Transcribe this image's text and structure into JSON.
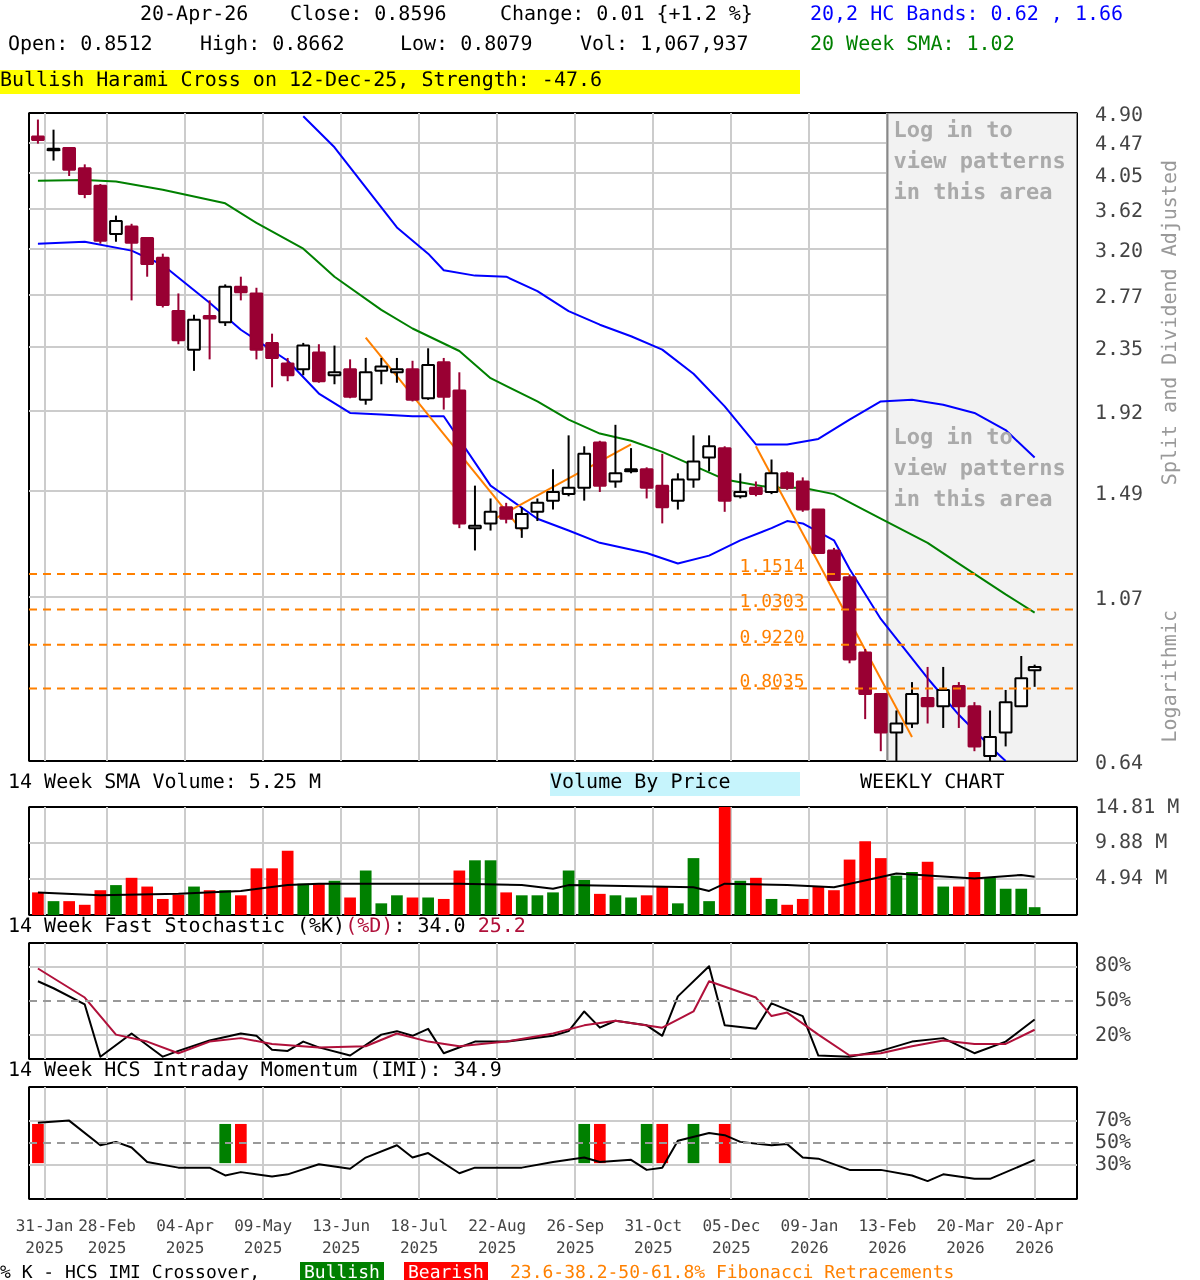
{
  "chart_data": [
    {
      "type": "candlestick",
      "x": [
        "2025-01-28",
        "2025-02-04",
        "2025-02-11",
        "2025-02-18",
        "2025-02-25",
        "2025-03-04",
        "2025-03-11",
        "2025-03-18",
        "2025-03-25",
        "2025-04-01",
        "2025-04-08",
        "2025-04-15",
        "2025-04-22",
        "2025-04-29",
        "2025-05-06",
        "2025-05-13",
        "2025-05-20",
        "2025-05-27",
        "2025-06-03",
        "2025-06-10",
        "2025-06-17",
        "2025-06-24",
        "2025-07-01",
        "2025-07-08",
        "2025-07-15",
        "2025-07-22",
        "2025-07-29",
        "2025-08-05",
        "2025-08-12",
        "2025-08-19",
        "2025-08-26",
        "2025-09-02",
        "2025-09-09",
        "2025-09-16",
        "2025-09-23",
        "2025-09-30",
        "2025-10-07",
        "2025-10-14",
        "2025-10-21",
        "2025-10-28",
        "2025-11-04",
        "2025-11-11",
        "2025-11-18",
        "2025-11-25",
        "2025-12-02",
        "2025-12-09",
        "2025-12-16",
        "2025-12-23",
        "2025-12-30",
        "2026-01-06",
        "2026-01-13",
        "2026-01-20",
        "2026-01-27",
        "2026-02-03",
        "2026-02-10",
        "2026-02-17",
        "2026-02-24",
        "2026-03-03",
        "2026-03-10",
        "2026-03-17",
        "2026-03-24",
        "2026-03-31",
        "2026-04-07",
        "2026-04-14",
        "2026-04-20"
      ],
      "ohlc": [
        [
          4.55,
          4.8,
          4.45,
          4.5
        ],
        [
          4.36,
          4.65,
          4.22,
          4.38
        ],
        [
          4.39,
          4.4,
          4.02,
          4.1
        ],
        [
          4.12,
          4.17,
          3.75,
          3.8
        ],
        [
          3.9,
          3.92,
          3.25,
          3.28
        ],
        [
          3.35,
          3.55,
          3.27,
          3.49
        ],
        [
          3.43,
          3.46,
          2.72,
          3.26
        ],
        [
          3.31,
          3.31,
          2.93,
          3.05
        ],
        [
          3.11,
          3.15,
          2.66,
          2.68
        ],
        [
          2.63,
          2.78,
          2.37,
          2.4
        ],
        [
          2.33,
          2.6,
          2.18,
          2.56
        ],
        [
          2.59,
          2.72,
          2.26,
          2.57
        ],
        [
          2.54,
          2.86,
          2.51,
          2.84
        ],
        [
          2.84,
          2.93,
          2.72,
          2.79
        ],
        [
          2.78,
          2.83,
          2.26,
          2.33
        ],
        [
          2.38,
          2.45,
          2.07,
          2.27
        ],
        [
          2.23,
          2.27,
          2.11,
          2.15
        ],
        [
          2.19,
          2.38,
          2.15,
          2.36
        ],
        [
          2.31,
          2.37,
          2.1,
          2.11
        ],
        [
          2.15,
          2.36,
          2.09,
          2.17
        ],
        [
          2.19,
          2.26,
          2.0,
          2.01
        ],
        [
          1.99,
          2.27,
          1.96,
          2.17
        ],
        [
          2.18,
          2.27,
          2.09,
          2.21
        ],
        [
          2.17,
          2.27,
          2.1,
          2.19
        ],
        [
          2.19,
          2.25,
          1.98,
          1.99
        ],
        [
          2.0,
          2.34,
          1.99,
          2.22
        ],
        [
          2.24,
          2.27,
          1.93,
          2.01
        ],
        [
          2.05,
          2.17,
          1.33,
          1.35
        ],
        [
          1.33,
          1.52,
          1.24,
          1.34
        ],
        [
          1.35,
          1.46,
          1.32,
          1.4
        ],
        [
          1.42,
          1.44,
          1.35,
          1.37
        ],
        [
          1.33,
          1.42,
          1.29,
          1.39
        ],
        [
          1.4,
          1.46,
          1.36,
          1.44
        ],
        [
          1.45,
          1.6,
          1.41,
          1.49
        ],
        [
          1.48,
          1.78,
          1.47,
          1.51
        ],
        [
          1.51,
          1.72,
          1.45,
          1.68
        ],
        [
          1.74,
          1.75,
          1.49,
          1.52
        ],
        [
          1.54,
          1.84,
          1.51,
          1.58
        ],
        [
          1.59,
          1.71,
          1.58,
          1.6
        ],
        [
          1.6,
          1.61,
          1.46,
          1.51
        ],
        [
          1.52,
          1.68,
          1.35,
          1.42
        ],
        [
          1.45,
          1.58,
          1.41,
          1.55
        ],
        [
          1.55,
          1.78,
          1.51,
          1.64
        ],
        [
          1.66,
          1.78,
          1.59,
          1.72
        ],
        [
          1.71,
          1.72,
          1.4,
          1.45
        ],
        [
          1.47,
          1.58,
          1.46,
          1.49
        ],
        [
          1.51,
          1.54,
          1.47,
          1.48
        ],
        [
          1.49,
          1.65,
          1.48,
          1.58
        ],
        [
          1.58,
          1.59,
          1.5,
          1.51
        ],
        [
          1.54,
          1.56,
          1.4,
          1.41
        ],
        [
          1.41,
          1.41,
          1.23,
          1.23
        ],
        [
          1.24,
          1.25,
          1.13,
          1.13
        ],
        [
          1.14,
          1.15,
          0.87,
          0.88
        ],
        [
          0.9,
          0.91,
          0.73,
          0.79
        ],
        [
          0.79,
          0.79,
          0.66,
          0.7
        ],
        [
          0.7,
          0.75,
          0.64,
          0.72
        ],
        [
          0.72,
          0.82,
          0.71,
          0.79
        ],
        [
          0.78,
          0.86,
          0.72,
          0.76
        ],
        [
          0.76,
          0.86,
          0.71,
          0.8
        ],
        [
          0.81,
          0.82,
          0.71,
          0.76
        ],
        [
          0.76,
          0.77,
          0.66,
          0.67
        ],
        [
          0.65,
          0.75,
          0.64,
          0.69
        ],
        [
          0.7,
          0.8,
          0.67,
          0.77
        ],
        [
          0.76,
          0.89,
          0.76,
          0.83
        ],
        [
          0.8512,
          0.8662,
          0.8079,
          0.8596
        ]
      ],
      "colors": [
        "#990033",
        "#ffffff",
        "#990033",
        "#990033",
        "#990033",
        "#ffffff",
        "#990033",
        "#990033",
        "#990033",
        "#990033",
        "#ffffff",
        "#990033",
        "#ffffff",
        "#990033",
        "#990033",
        "#990033",
        "#990033",
        "#ffffff",
        "#990033",
        "#ffffff",
        "#990033",
        "#ffffff",
        "#ffffff",
        "#ffffff",
        "#990033",
        "#ffffff",
        "#990033",
        "#990033",
        "#ffffff",
        "#ffffff",
        "#990033",
        "#ffffff",
        "#ffffff",
        "#ffffff",
        "#ffffff",
        "#ffffff",
        "#990033",
        "#ffffff",
        "#ffffff",
        "#990033",
        "#990033",
        "#ffffff",
        "#ffffff",
        "#ffffff",
        "#990033",
        "#ffffff",
        "#990033",
        "#ffffff",
        "#990033",
        "#990033",
        "#990033",
        "#990033",
        "#990033",
        "#990033",
        "#990033",
        "#ffffff",
        "#ffffff",
        "#990033",
        "#ffffff",
        "#990033",
        "#990033",
        "#ffffff",
        "#ffffff",
        "#ffffff",
        "#ffffff"
      ],
      "series": [
        {
          "type": "line",
          "name": "20,2 HC Bands: 0.62 , 1.66",
          "color": "#0000ff",
          "x": [
            "2025-05-27",
            "2025-06-10",
            "2025-06-24",
            "2025-07-08",
            "2025-07-22",
            "2025-07-29",
            "2025-08-12",
            "2025-08-26",
            "2025-09-09",
            "2025-09-23",
            "2025-10-07",
            "2025-10-21",
            "2025-11-04",
            "2025-11-18",
            "2025-12-02",
            "2025-12-16",
            "2025-12-30",
            "2026-01-13",
            "2026-01-27",
            "2026-02-10",
            "2026-02-24",
            "2026-03-10",
            "2026-03-24",
            "2026-04-07",
            "2026-04-20"
          ],
          "values": [
            4.85,
            4.4,
            3.88,
            3.42,
            3.15,
            2.99,
            2.94,
            2.93,
            2.8,
            2.63,
            2.52,
            2.43,
            2.33,
            2.16,
            1.95,
            1.73,
            1.73,
            1.76,
            1.87,
            1.98,
            1.99,
            1.96,
            1.91,
            1.81,
            1.66
          ]
        },
        {
          "type": "line",
          "color": "#0000ff",
          "x": [
            "2025-01-28",
            "2025-02-18",
            "2025-03-11",
            "2025-03-25",
            "2025-04-15",
            "2025-04-29",
            "2025-05-20",
            "2025-06-03",
            "2025-06-17",
            "2025-07-01",
            "2025-07-15",
            "2025-07-29",
            "2025-08-19",
            "2025-09-09",
            "2025-09-23",
            "2025-10-07",
            "2025-10-28",
            "2025-11-11",
            "2025-11-25",
            "2025-12-09",
            "2025-12-23",
            "2025-12-30",
            "2026-01-06",
            "2026-01-20",
            "2026-01-27",
            "2026-02-10",
            "2026-03-03",
            "2026-03-17",
            "2026-03-31",
            "2026-04-07"
          ],
          "values": [
            3.25,
            3.27,
            3.18,
            3.04,
            2.7,
            2.48,
            2.25,
            2.03,
            1.91,
            1.9,
            1.89,
            1.89,
            1.52,
            1.37,
            1.32,
            1.27,
            1.23,
            1.19,
            1.22,
            1.28,
            1.33,
            1.36,
            1.35,
            1.28,
            1.17,
            1.0,
            0.83,
            0.74,
            0.67,
            0.64
          ]
        },
        {
          "type": "line",
          "name": "20 Week SMA: 1.02",
          "color": "#008000",
          "x": [
            "2025-01-28",
            "2025-02-18",
            "2025-03-04",
            "2025-03-25",
            "2025-04-22",
            "2025-05-06",
            "2025-05-27",
            "2025-06-10",
            "2025-07-01",
            "2025-07-15",
            "2025-08-05",
            "2025-08-19",
            "2025-09-09",
            "2025-09-23",
            "2025-10-07",
            "2025-10-21",
            "2025-11-04",
            "2025-12-02",
            "2025-12-23",
            "2026-01-06",
            "2026-01-20",
            "2026-02-10",
            "2026-03-03",
            "2026-03-17",
            "2026-04-07",
            "2026-04-20"
          ],
          "values": [
            3.96,
            3.97,
            3.95,
            3.85,
            3.69,
            3.47,
            3.2,
            2.93,
            2.64,
            2.49,
            2.32,
            2.13,
            1.98,
            1.87,
            1.79,
            1.75,
            1.69,
            1.55,
            1.51,
            1.51,
            1.48,
            1.37,
            1.27,
            1.19,
            1.08,
            1.02
          ]
        },
        {
          "type": "line",
          "color": "#ff8000",
          "x": [
            "2025-06-24",
            "2025-09-02"
          ],
          "values": [
            2.42,
            1.32
          ]
        },
        {
          "type": "line",
          "color": "#ff8000",
          "x": [
            "2025-08-19",
            "2025-10-21"
          ],
          "values": [
            1.36,
            1.73
          ]
        },
        {
          "type": "line",
          "color": "#ff8000",
          "x": [
            "2025-12-16",
            "2026-02-24"
          ],
          "values": [
            1.72,
            0.69
          ]
        }
      ],
      "xlim": [
        "2025-01-24",
        "2026-05-09"
      ],
      "ylim": [
        0.64,
        4.9
      ],
      "yticks": [
        0.64,
        1.07,
        1.49,
        1.92,
        2.35,
        2.77,
        {
          "value": 3.2,
          "label": "3.20"
        },
        3.62,
        4.05,
        4.47,
        {
          "value": 4.9,
          "label": "4.90"
        }
      ],
      "log": true,
      "grid": true,
      "legend": "top right",
      "tick_labels": "y",
      "ref_lines": [
        {
          "axis": "y",
          "value": 1.1514,
          "label": "1.1514",
          "color": "#ff8000",
          "line_style": "dashed"
        },
        {
          "axis": "y",
          "value": 1.0303,
          "label": "1.0303",
          "color": "#ff8000",
          "line_style": "dashed"
        },
        {
          "axis": "y",
          "value": 0.922,
          "label": "0.9220",
          "color": "#ff8000",
          "line_style": "dashed"
        },
        {
          "axis": "y",
          "value": 0.8035,
          "label": "0.8035",
          "color": "#ff8000",
          "line_style": "dashed"
        }
      ],
      "bands": [
        {
          "axis": "x",
          "from": "2026-02-13",
          "to": "2026-05-09",
          "label": "Log in to view patterns in this area",
          "color": "#f2f2f2"
        }
      ],
      "annotations": [
        "20-Apr-26",
        "Close: 0.8596",
        "Change: 0.01 {+1.2 %}",
        "Open: 0.8512",
        "High: 0.8662",
        "Low: 0.8079",
        "Vol: 1,067,937",
        "Bullish Harami Cross on 12-Dec-25, Strength: -47.6",
        "Split and Dividend Adjusted",
        "Logarithmic",
        "Log in to view patterns in this area",
        "23.6-38.2-50-61.8% Fibonacci Retracements"
      ]
    },
    {
      "type": "bar",
      "title": "14 Week SMA Volume: 5.25 M",
      "x": [
        "2025-01-28",
        "2025-02-04",
        "2025-02-11",
        "2025-02-18",
        "2025-02-25",
        "2025-03-04",
        "2025-03-11",
        "2025-03-18",
        "2025-03-25",
        "2025-04-01",
        "2025-04-08",
        "2025-04-15",
        "2025-04-22",
        "2025-04-29",
        "2025-05-06",
        "2025-05-13",
        "2025-05-20",
        "2025-05-27",
        "2025-06-03",
        "2025-06-10",
        "2025-06-17",
        "2025-06-24",
        "2025-07-01",
        "2025-07-08",
        "2025-07-15",
        "2025-07-22",
        "2025-07-29",
        "2025-08-05",
        "2025-08-12",
        "2025-08-19",
        "2025-08-26",
        "2025-09-02",
        "2025-09-09",
        "2025-09-16",
        "2025-09-23",
        "2025-09-30",
        "2025-10-07",
        "2025-10-14",
        "2025-10-21",
        "2025-10-28",
        "2025-11-04",
        "2025-11-11",
        "2025-11-18",
        "2025-11-25",
        "2025-12-02",
        "2025-12-09",
        "2025-12-16",
        "2025-12-23",
        "2025-12-30",
        "2026-01-06",
        "2026-01-13",
        "2026-01-20",
        "2026-01-27",
        "2026-02-03",
        "2026-02-10",
        "2026-02-17",
        "2026-02-24",
        "2026-03-03",
        "2026-03-10",
        "2026-03-17",
        "2026-03-24",
        "2026-03-31",
        "2026-04-07",
        "2026-04-14",
        "2026-04-20"
      ],
      "series": [
        {
          "type": "bar",
          "colors": [
            "#ff0000",
            "#008000",
            "#ff0000",
            "#ff0000",
            "#ff0000",
            "#008000",
            "#ff0000",
            "#ff0000",
            "#ff0000",
            "#ff0000",
            "#008000",
            "#ff0000",
            "#008000",
            "#ff0000",
            "#ff0000",
            "#ff0000",
            "#ff0000",
            "#008000",
            "#ff0000",
            "#008000",
            "#ff0000",
            "#008000",
            "#008000",
            "#008000",
            "#ff0000",
            "#008000",
            "#ff0000",
            "#ff0000",
            "#008000",
            "#008000",
            "#ff0000",
            "#008000",
            "#008000",
            "#008000",
            "#008000",
            "#008000",
            "#ff0000",
            "#008000",
            "#008000",
            "#ff0000",
            "#ff0000",
            "#008000",
            "#008000",
            "#008000",
            "#ff0000",
            "#008000",
            "#ff0000",
            "#008000",
            "#ff0000",
            "#ff0000",
            "#ff0000",
            "#ff0000",
            "#ff0000",
            "#ff0000",
            "#ff0000",
            "#008000",
            "#008000",
            "#ff0000",
            "#008000",
            "#ff0000",
            "#ff0000",
            "#008000",
            "#008000",
            "#008000",
            "#008000"
          ],
          "values": [
            3.1,
            1.9,
            1.9,
            1.4,
            3.4,
            4.1,
            5.1,
            3.9,
            2.2,
            2.8,
            3.9,
            3.4,
            3.4,
            2.7,
            6.4,
            6.4,
            8.8,
            4.3,
            4.3,
            4.7,
            2.4,
            6.1,
            1.6,
            2.7,
            2.4,
            2.4,
            2.2,
            6.1,
            7.5,
            7.5,
            3.1,
            2.7,
            2.7,
            3.1,
            6.1,
            4.8,
            2.9,
            2.7,
            2.4,
            2.7,
            3.9,
            1.6,
            7.8,
            1.9,
            14.81,
            4.7,
            5.1,
            2.2,
            1.4,
            2.2,
            3.9,
            3.4,
            7.6,
            10.1,
            7.8,
            5.4,
            5.9,
            7.3,
            3.9,
            3.9,
            5.9,
            5.1,
            3.6,
            3.6,
            1.07
          ]
        },
        {
          "type": "line",
          "color": "#000000",
          "x": [
            "2025-01-28",
            "2025-02-25",
            "2025-04-01",
            "2025-04-29",
            "2025-05-20",
            "2025-06-03",
            "2025-08-05",
            "2025-09-02",
            "2025-09-16",
            "2025-09-23",
            "2025-11-18",
            "2025-11-25",
            "2025-12-02",
            "2025-12-30",
            "2026-01-20",
            "2026-02-10",
            "2026-02-17",
            "2026-03-24",
            "2026-04-14",
            "2026-04-20"
          ],
          "values": [
            3.1,
            2.7,
            2.9,
            3.3,
            4.1,
            4.3,
            4.3,
            4.1,
            3.6,
            4.1,
            3.8,
            3.3,
            4.3,
            4.1,
            3.8,
            5.2,
            5.7,
            5.0,
            5.5,
            5.25
          ]
        }
      ],
      "xlim": [
        "2025-01-24",
        "2026-05-09"
      ],
      "ylim": [
        0,
        14.81
      ],
      "yticks": [
        {
          "value": 4.94,
          "label": "4.94 M"
        },
        {
          "value": 9.88,
          "label": "9.88 M"
        },
        {
          "value": 14.81,
          "label": "14.81 M"
        }
      ],
      "grid": true,
      "tick_labels": "y",
      "annotations": [
        "Volume By Price",
        "WEEKLY CHART"
      ]
    },
    {
      "type": "line",
      "title": "14 Week Fast Stochastic",
      "legend": "top left",
      "series": [
        {
          "type": "line",
          "name": "(%K)",
          "color": "#000000",
          "x": [
            "2025-01-28",
            "2025-02-04",
            "2025-02-18",
            "2025-02-25",
            "2025-03-11",
            "2025-03-25",
            "2025-04-01",
            "2025-04-15",
            "2025-04-29",
            "2025-05-06",
            "2025-05-13",
            "2025-05-20",
            "2025-05-27",
            "2025-06-03",
            "2025-06-17",
            "2025-07-01",
            "2025-07-08",
            "2025-07-15",
            "2025-07-22",
            "2025-07-29",
            "2025-08-12",
            "2025-08-26",
            "2025-09-16",
            "2025-09-23",
            "2025-09-30",
            "2025-10-07",
            "2025-10-14",
            "2025-10-28",
            "2025-11-04",
            "2025-11-11",
            "2025-11-25",
            "2025-12-02",
            "2025-12-16",
            "2025-12-23",
            "2026-01-06",
            "2026-01-13",
            "2026-01-27",
            "2026-02-10",
            "2026-02-24",
            "2026-03-10",
            "2026-03-24",
            "2026-04-07",
            "2026-04-20"
          ],
          "values": [
            67,
            61,
            47,
            2,
            22,
            2,
            7,
            16,
            22,
            20,
            8,
            7,
            15,
            10,
            3,
            21,
            24,
            20,
            26,
            5,
            15,
            15,
            20,
            24,
            41,
            27,
            33,
            29,
            20,
            54,
            80,
            29,
            26,
            48,
            37,
            3,
            2,
            7,
            15,
            18,
            5,
            15,
            34
          ]
        },
        {
          "type": "line",
          "name": "(%D)",
          "color": "#b0103a",
          "x": [
            "2025-01-28",
            "2025-02-18",
            "2025-03-04",
            "2025-03-18",
            "2025-04-01",
            "2025-04-15",
            "2025-04-29",
            "2025-05-13",
            "2025-06-03",
            "2025-06-24",
            "2025-07-08",
            "2025-07-22",
            "2025-08-05",
            "2025-08-26",
            "2025-09-16",
            "2025-09-30",
            "2025-10-14",
            "2025-11-04",
            "2025-11-18",
            "2025-11-25",
            "2025-12-16",
            "2025-12-23",
            "2025-12-30",
            "2026-01-13",
            "2026-01-27",
            "2026-02-10",
            "2026-02-24",
            "2026-03-10",
            "2026-03-24",
            "2026-04-07",
            "2026-04-20"
          ],
          "values": [
            78,
            53,
            21,
            15,
            5,
            15,
            18,
            13,
            10,
            11,
            22,
            15,
            11,
            15,
            22,
            29,
            33,
            27,
            41,
            67,
            53,
            37,
            40,
            21,
            3,
            5,
            11,
            16,
            13,
            13,
            25.2
          ]
        }
      ],
      "annotations": [
        ": 34.0",
        "25.2"
      ],
      "xlim": [
        "2025-01-24",
        "2026-05-09"
      ],
      "ylim": [
        0,
        100
      ],
      "yticks": [
        {
          "value": 20,
          "label": "20%"
        },
        {
          "value": 50,
          "label": "50%"
        },
        {
          "value": 80,
          "label": "80%"
        }
      ],
      "ref_lines": [
        {
          "axis": "y",
          "value": 50,
          "color": "#999999",
          "line_style": "dashed"
        }
      ],
      "grid": true,
      "tick_labels": "y"
    },
    {
      "type": "line",
      "title": "14 Week HCS Intraday Momentum (IMI): 34.9",
      "legend": "bottom",
      "legend_title": "% K - HCS IMI Crossover,",
      "series": [
        {
          "type": "bar",
          "name": "Bullish",
          "color": "#008000",
          "x": [
            "2025-04-22",
            "2025-09-30",
            "2025-10-28",
            "2025-11-18"
          ],
          "base": [
            32,
            32,
            32,
            32
          ],
          "values": [
            35,
            35,
            35,
            35
          ]
        },
        {
          "type": "bar",
          "name": "Bearish",
          "color": "#ff0000",
          "x": [
            "2025-01-28",
            "2025-04-29",
            "2025-10-07",
            "2025-11-04",
            "2025-12-02"
          ],
          "base": [
            32,
            32,
            32,
            32,
            32
          ],
          "values": [
            35,
            35,
            35,
            35,
            35
          ]
        },
        {
          "type": "line",
          "color": "#000000",
          "x": [
            "2025-01-28",
            "2025-02-11",
            "2025-02-25",
            "2025-03-04",
            "2025-03-11",
            "2025-03-18",
            "2025-04-01",
            "2025-04-15",
            "2025-04-22",
            "2025-04-29",
            "2025-05-13",
            "2025-05-20",
            "2025-06-03",
            "2025-06-17",
            "2025-06-24",
            "2025-07-08",
            "2025-07-15",
            "2025-07-22",
            "2025-08-05",
            "2025-08-12",
            "2025-09-02",
            "2025-09-16",
            "2025-09-30",
            "2025-10-07",
            "2025-10-21",
            "2025-10-28",
            "2025-11-04",
            "2025-11-11",
            "2025-11-25",
            "2025-12-02",
            "2025-12-09",
            "2025-12-23",
            "2025-12-30",
            "2026-01-06",
            "2026-01-13",
            "2026-01-27",
            "2026-02-10",
            "2026-02-24",
            "2026-03-03",
            "2026-03-10",
            "2026-03-24",
            "2026-03-31",
            "2026-04-20"
          ],
          "values": [
            68,
            70,
            48,
            51,
            46,
            33,
            28,
            28,
            21,
            24,
            20,
            22,
            31,
            27,
            37,
            48,
            37,
            41,
            23,
            28,
            28,
            33,
            37,
            33,
            35,
            26,
            28,
            52,
            59,
            57,
            51,
            48,
            49,
            37,
            36,
            26,
            26,
            21,
            16,
            22,
            18,
            18,
            34.9
          ]
        }
      ],
      "xlim": [
        "2025-01-24",
        "2026-05-09"
      ],
      "xticks": [
        {
          "value": "2025-01-31",
          "label": "31-Jan\n2025"
        },
        {
          "value": "2025-02-28",
          "label": "28-Feb\n2025"
        },
        {
          "value": "2025-04-04",
          "label": "04-Apr\n2025"
        },
        {
          "value": "2025-05-09",
          "label": "09-May\n2025"
        },
        {
          "value": "2025-06-13",
          "label": "13-Jun\n2025"
        },
        {
          "value": "2025-07-18",
          "label": "18-Jul\n2025"
        },
        {
          "value": "2025-08-22",
          "label": "22-Aug\n2025"
        },
        {
          "value": "2025-09-26",
          "label": "26-Sep\n2025"
        },
        {
          "value": "2025-10-31",
          "label": "31-Oct\n2025"
        },
        {
          "value": "2025-12-05",
          "label": "05-Dec\n2025"
        },
        {
          "value": "2026-01-09",
          "label": "09-Jan\n2026"
        },
        {
          "value": "2026-02-13",
          "label": "13-Feb\n2026"
        },
        {
          "value": "2026-03-20",
          "label": "20-Mar\n2026"
        },
        {
          "value": "2026-04-20",
          "label": "20-Apr\n2026"
        }
      ],
      "ylim": [
        0,
        100
      ],
      "yticks": [
        {
          "value": 30,
          "label": "30%"
        },
        {
          "value": 50,
          "label": "50%"
        },
        {
          "value": 70,
          "label": "70%"
        }
      ],
      "ref_lines": [
        {
          "axis": "y",
          "value": 50,
          "color": "#999999",
          "line_style": "dashed"
        }
      ],
      "grid": true
    }
  ]
}
